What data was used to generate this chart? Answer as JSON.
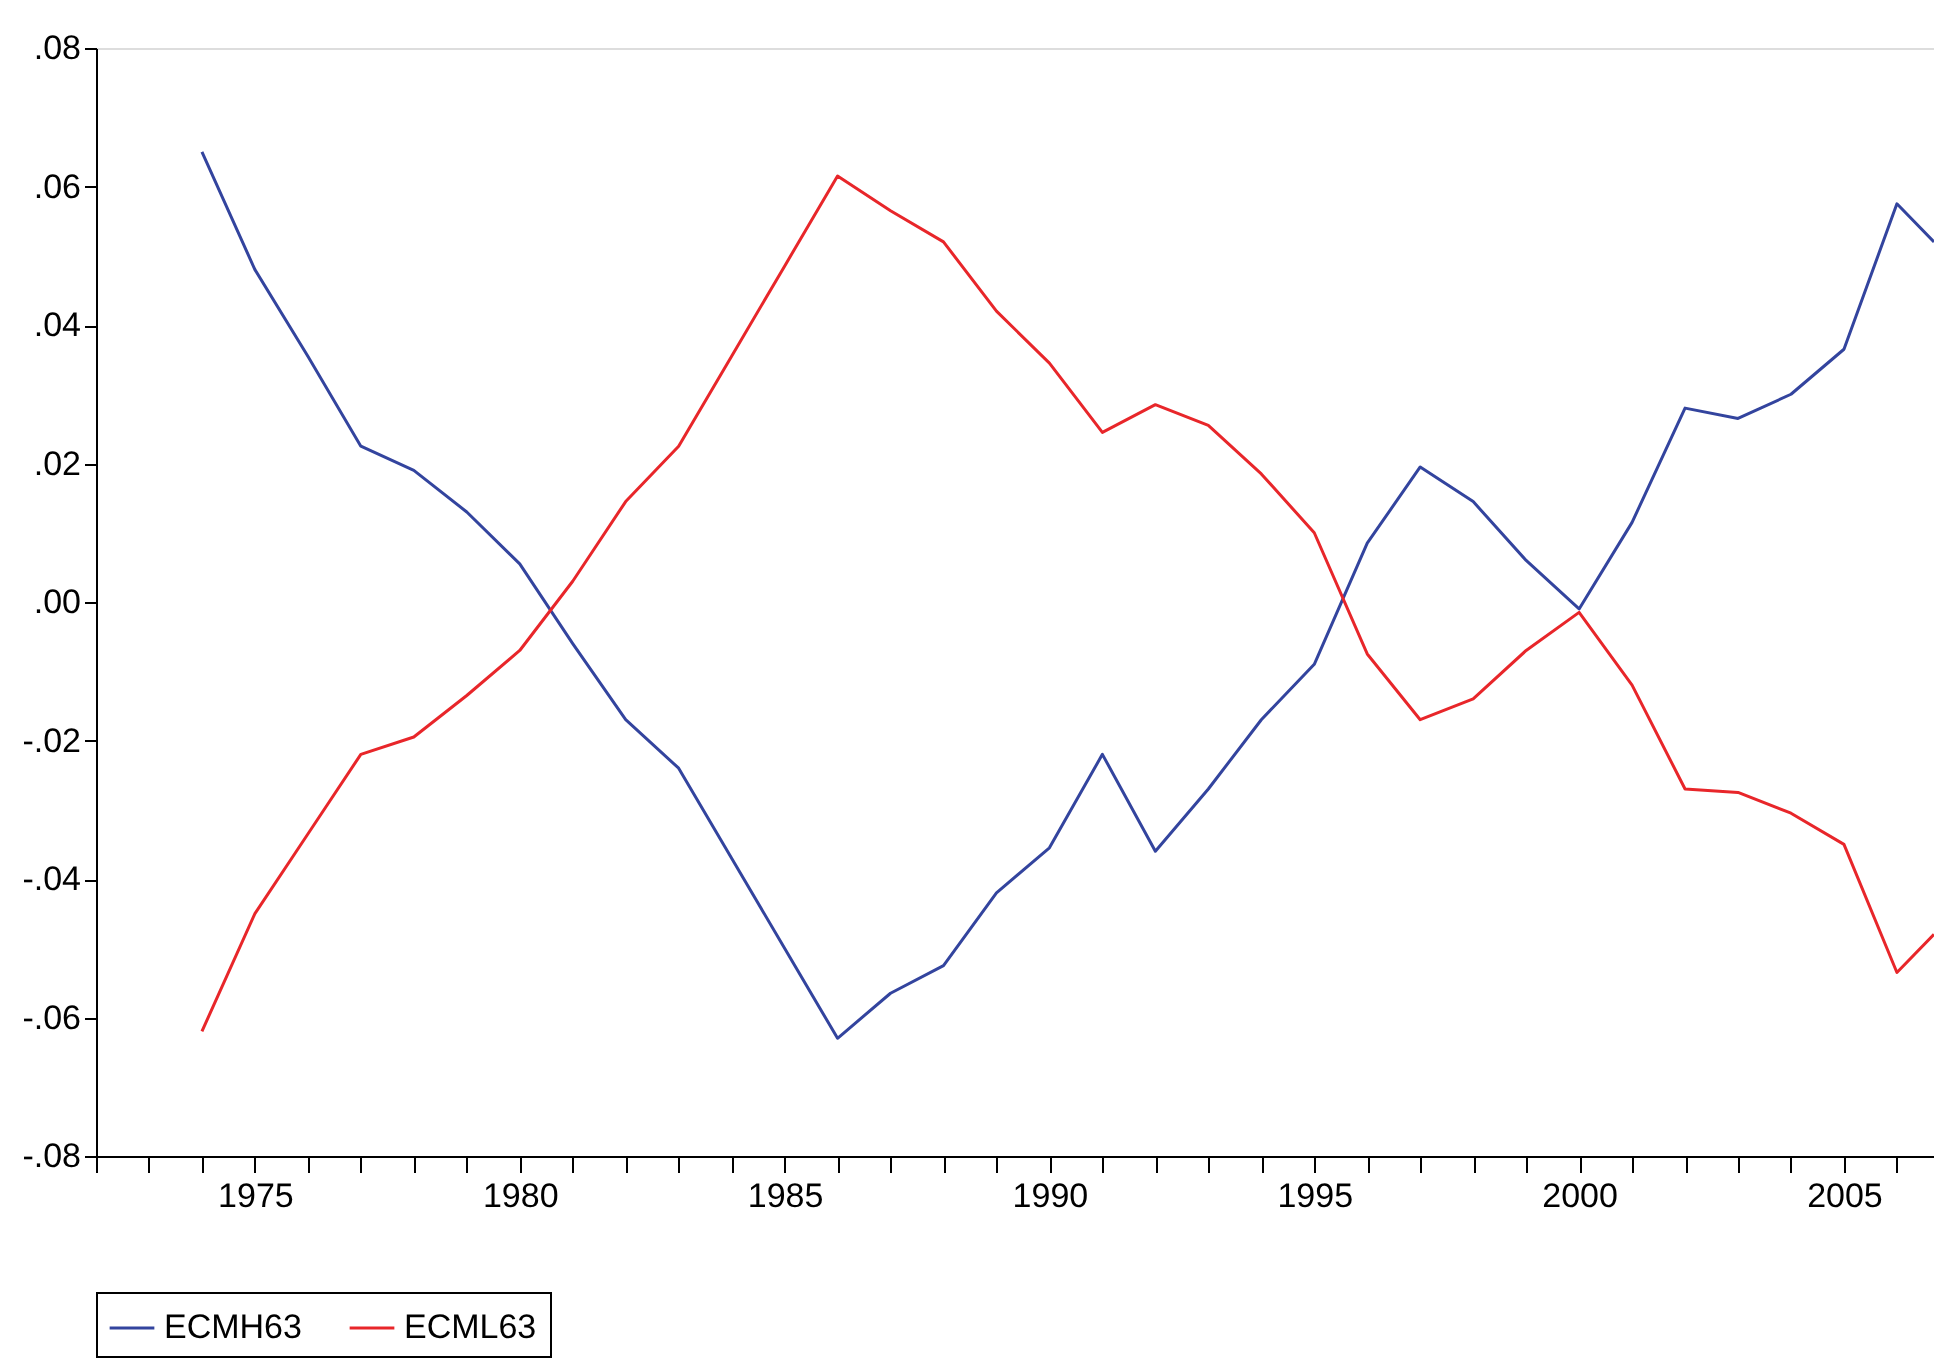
{
  "chart_data": {
    "type": "line",
    "x": [
      1974,
      1975,
      1976,
      1977,
      1978,
      1979,
      1980,
      1981,
      1982,
      1983,
      1984,
      1985,
      1986,
      1987,
      1988,
      1989,
      1990,
      1991,
      1992,
      1993,
      1994,
      1995,
      1996,
      1997,
      1998,
      1999,
      2000,
      2001,
      2002,
      2003,
      2004,
      2005,
      2006,
      2006.7
    ],
    "series": [
      {
        "name": "ECMH63",
        "color": "#33449e",
        "values": [
          0.065,
          0.048,
          0.0355,
          0.0225,
          0.019,
          0.013,
          0.0055,
          -0.006,
          -0.017,
          -0.024,
          -0.037,
          -0.05,
          -0.063,
          -0.0565,
          -0.0525,
          -0.042,
          -0.0355,
          -0.022,
          -0.036,
          -0.027,
          -0.017,
          -0.009,
          0.0085,
          0.0195,
          0.0145,
          0.006,
          -0.001,
          0.0115,
          0.028,
          0.0265,
          0.03,
          0.0365,
          0.0575,
          0.052
        ]
      },
      {
        "name": "ECML63",
        "color": "#e8262a",
        "values": [
          -0.062,
          -0.045,
          -0.0335,
          -0.022,
          -0.0195,
          -0.0135,
          -0.007,
          0.003,
          0.0145,
          0.0225,
          0.0355,
          0.0485,
          0.0615,
          0.0565,
          0.052,
          0.042,
          0.0345,
          0.0245,
          0.0285,
          0.0255,
          0.0185,
          0.01,
          -0.0075,
          -0.017,
          -0.014,
          -0.007,
          -0.0015,
          -0.012,
          -0.027,
          -0.0275,
          -0.0305,
          -0.035,
          -0.0535,
          -0.048
        ]
      }
    ],
    "xlim": [
      1972,
      2006.7
    ],
    "xticks": [
      {
        "value": 1972,
        "label": null
      },
      {
        "value": 1973,
        "label": null
      },
      {
        "value": 1974,
        "label": null
      },
      1975,
      {
        "value": 1976,
        "label": null
      },
      {
        "value": 1977,
        "label": null
      },
      {
        "value": 1978,
        "label": null
      },
      {
        "value": 1979,
        "label": null
      },
      1980,
      {
        "value": 1981,
        "label": null
      },
      {
        "value": 1982,
        "label": null
      },
      {
        "value": 1983,
        "label": null
      },
      {
        "value": 1984,
        "label": null
      },
      1985,
      {
        "value": 1986,
        "label": null
      },
      {
        "value": 1987,
        "label": null
      },
      {
        "value": 1988,
        "label": null
      },
      {
        "value": 1989,
        "label": null
      },
      1990,
      {
        "value": 1991,
        "label": null
      },
      {
        "value": 1992,
        "label": null
      },
      {
        "value": 1993,
        "label": null
      },
      {
        "value": 1994,
        "label": null
      },
      1995,
      {
        "value": 1996,
        "label": null
      },
      {
        "value": 1997,
        "label": null
      },
      {
        "value": 1998,
        "label": null
      },
      {
        "value": 1999,
        "label": null
      },
      2000,
      {
        "value": 2001,
        "label": null
      },
      {
        "value": 2002,
        "label": null
      },
      {
        "value": 2003,
        "label": null
      },
      {
        "value": 2004,
        "label": null
      },
      2005,
      {
        "value": 2006,
        "label": null
      }
    ],
    "ylim": [
      -0.08,
      0.08
    ],
    "yticks": [
      {
        "value": -0.08,
        "label": "-.08"
      },
      {
        "value": -0.06,
        "label": "-.06"
      },
      {
        "value": -0.04,
        "label": "-.04"
      },
      {
        "value": -0.02,
        "label": "-.02"
      },
      {
        "value": 0,
        "label": ".00"
      },
      {
        "value": 0.02,
        "label": ".02"
      },
      {
        "value": 0.04,
        "label": ".04"
      },
      {
        "value": 0.06,
        "label": ".06"
      },
      {
        "value": 0.08,
        "label": ".08"
      }
    ],
    "grid": false,
    "legend": "bottom",
    "line_style": "solid"
  }
}
